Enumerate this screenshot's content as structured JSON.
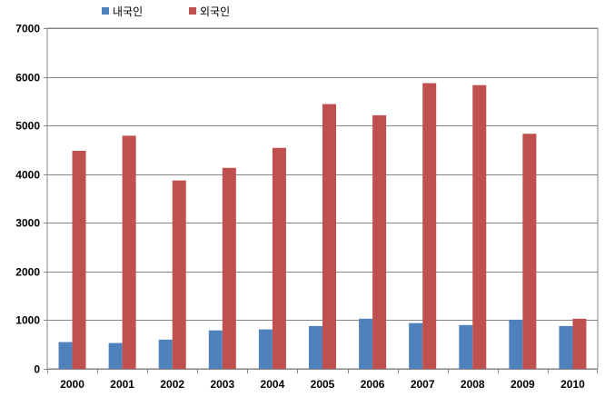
{
  "chart_data": {
    "type": "bar",
    "categories": [
      "2000",
      "2001",
      "2002",
      "2003",
      "2004",
      "2005",
      "2006",
      "2007",
      "2008",
      "2009",
      "2010"
    ],
    "series": [
      {
        "name": "내국인",
        "color": "#4F81BD",
        "values": [
          550,
          530,
          600,
          790,
          810,
          880,
          1030,
          940,
          900,
          1010,
          880
        ]
      },
      {
        "name": "외국인",
        "color": "#C0504D",
        "values": [
          4480,
          4790,
          3870,
          4130,
          4540,
          5440,
          5210,
          5870,
          5830,
          4830,
          1030
        ]
      }
    ],
    "y_ticks": [
      "0",
      "1000",
      "2000",
      "3000",
      "4000",
      "5000",
      "6000",
      "7000"
    ],
    "ylim": [
      0,
      7000
    ],
    "grid": true,
    "legend_position": "top-left",
    "title": "",
    "xlabel": "",
    "ylabel": ""
  }
}
